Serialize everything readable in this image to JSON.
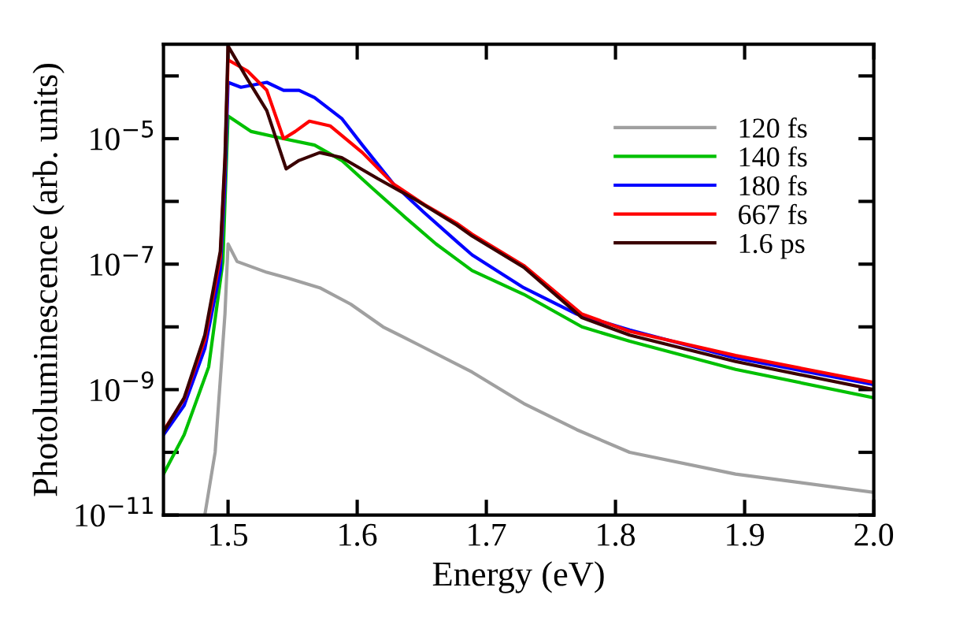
{
  "chart_data": {
    "type": "line",
    "xlabel": "Energy (eV)",
    "ylabel": "Photoluminescence (arb. units)",
    "xlim": [
      1.45,
      2.0
    ],
    "xticks": [
      {
        "value": 1.5,
        "label": "1.5"
      },
      {
        "value": 1.6,
        "label": "1.6"
      },
      {
        "value": 1.7,
        "label": "1.7"
      },
      {
        "value": 1.8,
        "label": "1.8"
      },
      {
        "value": 1.9,
        "label": "1.9"
      },
      {
        "value": 2.0,
        "label": "2.0"
      }
    ],
    "log": "y",
    "ylim": [
      1e-11,
      0.00032
    ],
    "yticks": [
      {
        "value": 1e-11,
        "label": "10$^{−11}$"
      },
      {
        "value": 1e-10,
        "label": null
      },
      {
        "value": 1e-09,
        "label": "10$^{−9}$"
      },
      {
        "value": 1e-08,
        "label": null
      },
      {
        "value": 1e-07,
        "label": "10$^{−7}$"
      },
      {
        "value": 1e-06,
        "label": null
      },
      {
        "value": 1e-05,
        "label": "10$^{−5}$"
      },
      {
        "value": 0.0001,
        "label": null
      }
    ],
    "grid": false,
    "legend": "top right",
    "marker": "none",
    "line_style": "solid",
    "series": [
      {
        "name": "120 fs",
        "color": "#a0a0a0",
        "x": [
          1.482,
          1.49,
          1.4976,
          1.5,
          1.507,
          1.53,
          1.546,
          1.571,
          1.595,
          1.62,
          1.649,
          1.689,
          1.729,
          1.77,
          1.811,
          1.893,
          2.0
        ],
        "values": [
          1e-11,
          1e-10,
          1.6e-08,
          2.1e-07,
          1.1e-07,
          7.4e-08,
          6e-08,
          4.2e-08,
          2.3e-08,
          1e-08,
          5e-09,
          1.9e-09,
          6e-10,
          2.3e-10,
          1e-10,
          4.5e-11,
          2.3e-11
        ]
      },
      {
        "name": "140 fs",
        "color": "#00c000",
        "x": [
          1.45,
          1.466,
          1.485,
          1.496,
          1.5,
          1.518,
          1.543,
          1.567,
          1.588,
          1.612,
          1.637,
          1.661,
          1.677,
          1.689,
          1.729,
          1.774,
          1.811,
          1.893,
          2.0
        ],
        "values": [
          4.5e-11,
          1.9e-10,
          2.3e-09,
          1.1e-07,
          2.3e-05,
          1.3e-05,
          1e-05,
          7.9e-06,
          4.5e-06,
          1.6e-06,
          5.6e-07,
          2.1e-07,
          1.2e-07,
          7.9e-08,
          3.3e-08,
          1e-08,
          5.9e-09,
          2.1e-09,
          7.4e-10
        ]
      },
      {
        "name": "180 fs",
        "color": "#0000ff",
        "x": [
          1.45,
          1.466,
          1.482,
          1.494,
          1.4976,
          1.5,
          1.51,
          1.53,
          1.543,
          1.555,
          1.567,
          1.588,
          1.604,
          1.628,
          1.652,
          1.677,
          1.689,
          1.729,
          1.77,
          1.811,
          1.893,
          2.0
        ],
        "values": [
          1.9e-10,
          5.6e-10,
          4.5e-09,
          7.9e-08,
          2e-06,
          7.9e-05,
          6.6e-05,
          7.9e-05,
          5.9e-05,
          5.9e-05,
          4.5e-05,
          2.1e-05,
          7.9e-06,
          1.9e-06,
          6.6e-07,
          2.3e-07,
          1.4e-07,
          4.2e-08,
          1.6e-08,
          8.9e-09,
          3.2e-09,
          1.2e-09
        ]
      },
      {
        "name": "667 fs",
        "color": "#ff0000",
        "x": [
          1.45,
          1.466,
          1.482,
          1.494,
          1.4976,
          1.5,
          1.515,
          1.53,
          1.543,
          1.552,
          1.563,
          1.579,
          1.604,
          1.628,
          1.652,
          1.677,
          1.689,
          1.729,
          1.774,
          1.811,
          1.893,
          2.0
        ],
        "values": [
          2.2e-10,
          7.1e-10,
          6.3e-09,
          1.3e-07,
          4e-06,
          0.00018,
          0.00012,
          5.9e-05,
          1e-05,
          1.3e-05,
          1.9e-05,
          1.6e-05,
          6e-06,
          1.9e-06,
          8.9e-07,
          4.5e-07,
          3e-07,
          9.5e-08,
          1.6e-08,
          8.5e-09,
          3.5e-09,
          1.3e-09
        ]
      },
      {
        "name": "1.6 ps",
        "color": "#3a0000",
        "x": [
          1.45,
          1.466,
          1.482,
          1.494,
          1.4976,
          1.5,
          1.515,
          1.53,
          1.545,
          1.555,
          1.571,
          1.588,
          1.616,
          1.644,
          1.677,
          1.689,
          1.729,
          1.774,
          1.811,
          1.893,
          2.0
        ],
        "values": [
          2.1e-10,
          7.4e-10,
          7.4e-09,
          1.6e-07,
          5e-06,
          0.0003,
          8.9e-05,
          2.8e-05,
          3.3e-06,
          4.5e-06,
          6e-06,
          5e-06,
          2.3e-06,
          1.1e-06,
          4.2e-07,
          2.8e-07,
          8.9e-08,
          1.4e-08,
          7.4e-09,
          2.8e-09,
          1e-09
        ]
      }
    ]
  }
}
